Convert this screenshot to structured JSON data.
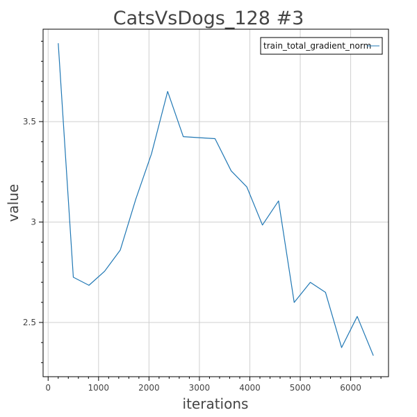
{
  "chart_data": {
    "type": "line",
    "title": "CatsVsDogs_128 #3",
    "xlabel": "iterations",
    "ylabel": "value",
    "xlim": [
      -100,
      6750
    ],
    "ylim": [
      2.23,
      3.96
    ],
    "xticks": [
      0,
      1000,
      2000,
      3000,
      4000,
      5000,
      6000
    ],
    "xtick_labels": [
      "0",
      "1000",
      "2000",
      "3000",
      "4000",
      "5000",
      "6000"
    ],
    "yticks": [
      2.5,
      3,
      3.5
    ],
    "ytick_labels": [
      "2.5",
      "3",
      "3.5"
    ],
    "grid": true,
    "legend_position": "top-right",
    "series": [
      {
        "name": "train_total_gradient_norm",
        "color": "#1f77b4",
        "x": [
          200,
          500,
          810,
          1120,
          1430,
          1740,
          2050,
          2370,
          2680,
          3000,
          3310,
          3630,
          3940,
          4250,
          4570,
          4880,
          5200,
          5500,
          5820,
          6130,
          6450
        ],
        "y": [
          3.89,
          2.725,
          2.685,
          2.755,
          2.86,
          3.115,
          3.34,
          3.65,
          3.425,
          3.42,
          3.415,
          3.255,
          3.175,
          2.985,
          3.105,
          2.6,
          2.7,
          2.65,
          2.375,
          2.53,
          2.335
        ]
      }
    ]
  }
}
